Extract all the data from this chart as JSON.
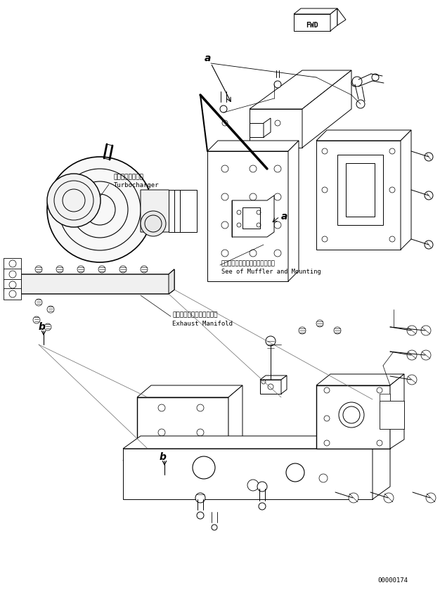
{
  "background_color": "#ffffff",
  "fig_width": 6.26,
  "fig_height": 8.49,
  "dpi": 100,
  "serial_number": "00000174",
  "fwd_label": "FWD",
  "line_color": "#000000",
  "labels": {
    "turbocharger_jp": "ターボチャージャ",
    "turbocharger_en": "Turbocharger",
    "muffler_jp": "マフラおよびマウンティング参照",
    "muffler_en": "See of Muffler and Mounting",
    "exhaust_jp": "エキゾーストマニホールド",
    "exhaust_en": "Exhaust Manifold",
    "label_a1": "a",
    "label_a2": "a",
    "label_b1": "b",
    "label_b2": "b"
  }
}
